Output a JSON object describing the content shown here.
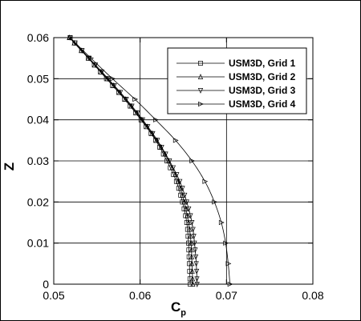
{
  "chart_data": {
    "type": "line",
    "title": "",
    "xlabel": "C",
    "xlabel_sub": "p",
    "ylabel": "Z",
    "xlim": [
      0.05,
      0.08
    ],
    "ylim": [
      0,
      0.06
    ],
    "xticks": [
      "0.05",
      "0.06",
      "0.07",
      "0.08"
    ],
    "yticks": [
      "0",
      "0.01",
      "0.02",
      "0.03",
      "0.04",
      "0.05",
      "0.06"
    ],
    "xticks_values": [
      0.05,
      0.06,
      0.07,
      0.08
    ],
    "yticks_values": [
      0,
      0.01,
      0.02,
      0.03,
      0.04,
      0.05,
      0.06
    ],
    "grid": true,
    "legend_position": "top-right",
    "series": [
      {
        "name": "USM3D, Grid 1",
        "marker": "square",
        "values": [
          [
            0.0658,
            0
          ],
          [
            0.0657,
            0.005
          ],
          [
            0.0656,
            0.01
          ],
          [
            0.0654,
            0.015
          ],
          [
            0.0649,
            0.02
          ],
          [
            0.0642,
            0.025
          ],
          [
            0.0631,
            0.03
          ],
          [
            0.0618,
            0.035
          ],
          [
            0.0601,
            0.04
          ],
          [
            0.0582,
            0.045
          ],
          [
            0.0561,
            0.05
          ],
          [
            0.054,
            0.055
          ],
          [
            0.0519,
            0.06
          ]
        ]
      },
      {
        "name": "USM3D, Grid 2",
        "marker": "triangle-up",
        "values": [
          [
            0.0661,
            0
          ],
          [
            0.066,
            0.005
          ],
          [
            0.0659,
            0.01
          ],
          [
            0.0656,
            0.015
          ],
          [
            0.0651,
            0.02
          ],
          [
            0.0644,
            0.025
          ],
          [
            0.0633,
            0.03
          ],
          [
            0.0619,
            0.035
          ],
          [
            0.0602,
            0.04
          ],
          [
            0.0583,
            0.045
          ],
          [
            0.0562,
            0.05
          ],
          [
            0.054,
            0.055
          ],
          [
            0.0518,
            0.06
          ]
        ]
      },
      {
        "name": "USM3D, Grid 3",
        "marker": "triangle-down",
        "values": [
          [
            0.0666,
            0
          ],
          [
            0.0665,
            0.005
          ],
          [
            0.0663,
            0.01
          ],
          [
            0.066,
            0.015
          ],
          [
            0.0654,
            0.02
          ],
          [
            0.0646,
            0.025
          ],
          [
            0.0634,
            0.03
          ],
          [
            0.062,
            0.035
          ],
          [
            0.0603,
            0.04
          ],
          [
            0.0584,
            0.045
          ],
          [
            0.0563,
            0.05
          ],
          [
            0.0541,
            0.055
          ],
          [
            0.0519,
            0.06
          ]
        ]
      },
      {
        "name": "USM3D, Grid 4",
        "marker": "triangle-right",
        "values": [
          [
            0.0704,
            0
          ],
          [
            0.0702,
            0.005
          ],
          [
            0.0699,
            0.01
          ],
          [
            0.0694,
            0.015
          ],
          [
            0.0686,
            0.02
          ],
          [
            0.0675,
            0.025
          ],
          [
            0.066,
            0.03
          ],
          [
            0.0641,
            0.035
          ],
          [
            0.0618,
            0.04
          ],
          [
            0.0594,
            0.045
          ],
          [
            0.0568,
            0.05
          ],
          [
            0.0543,
            0.055
          ],
          [
            0.0519,
            0.06
          ]
        ]
      }
    ]
  }
}
